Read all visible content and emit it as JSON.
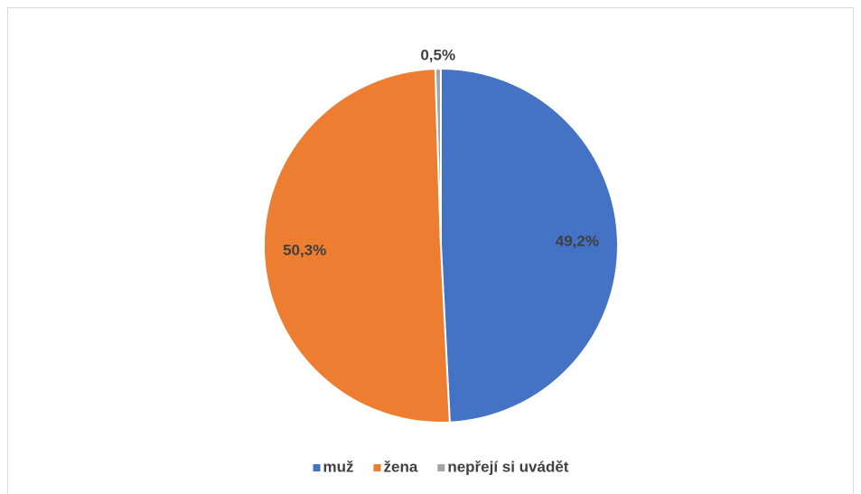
{
  "chart_data": {
    "type": "pie",
    "categories": [
      "muž",
      "žena",
      "nepřejí si uvádět"
    ],
    "values": [
      49.2,
      50.3,
      0.5
    ],
    "value_labels": [
      "49,2%",
      "50,3%",
      "0,5%"
    ],
    "colors": [
      "#4472c4",
      "#ed7d31",
      "#a5a5a5"
    ],
    "legend": "bottom"
  }
}
